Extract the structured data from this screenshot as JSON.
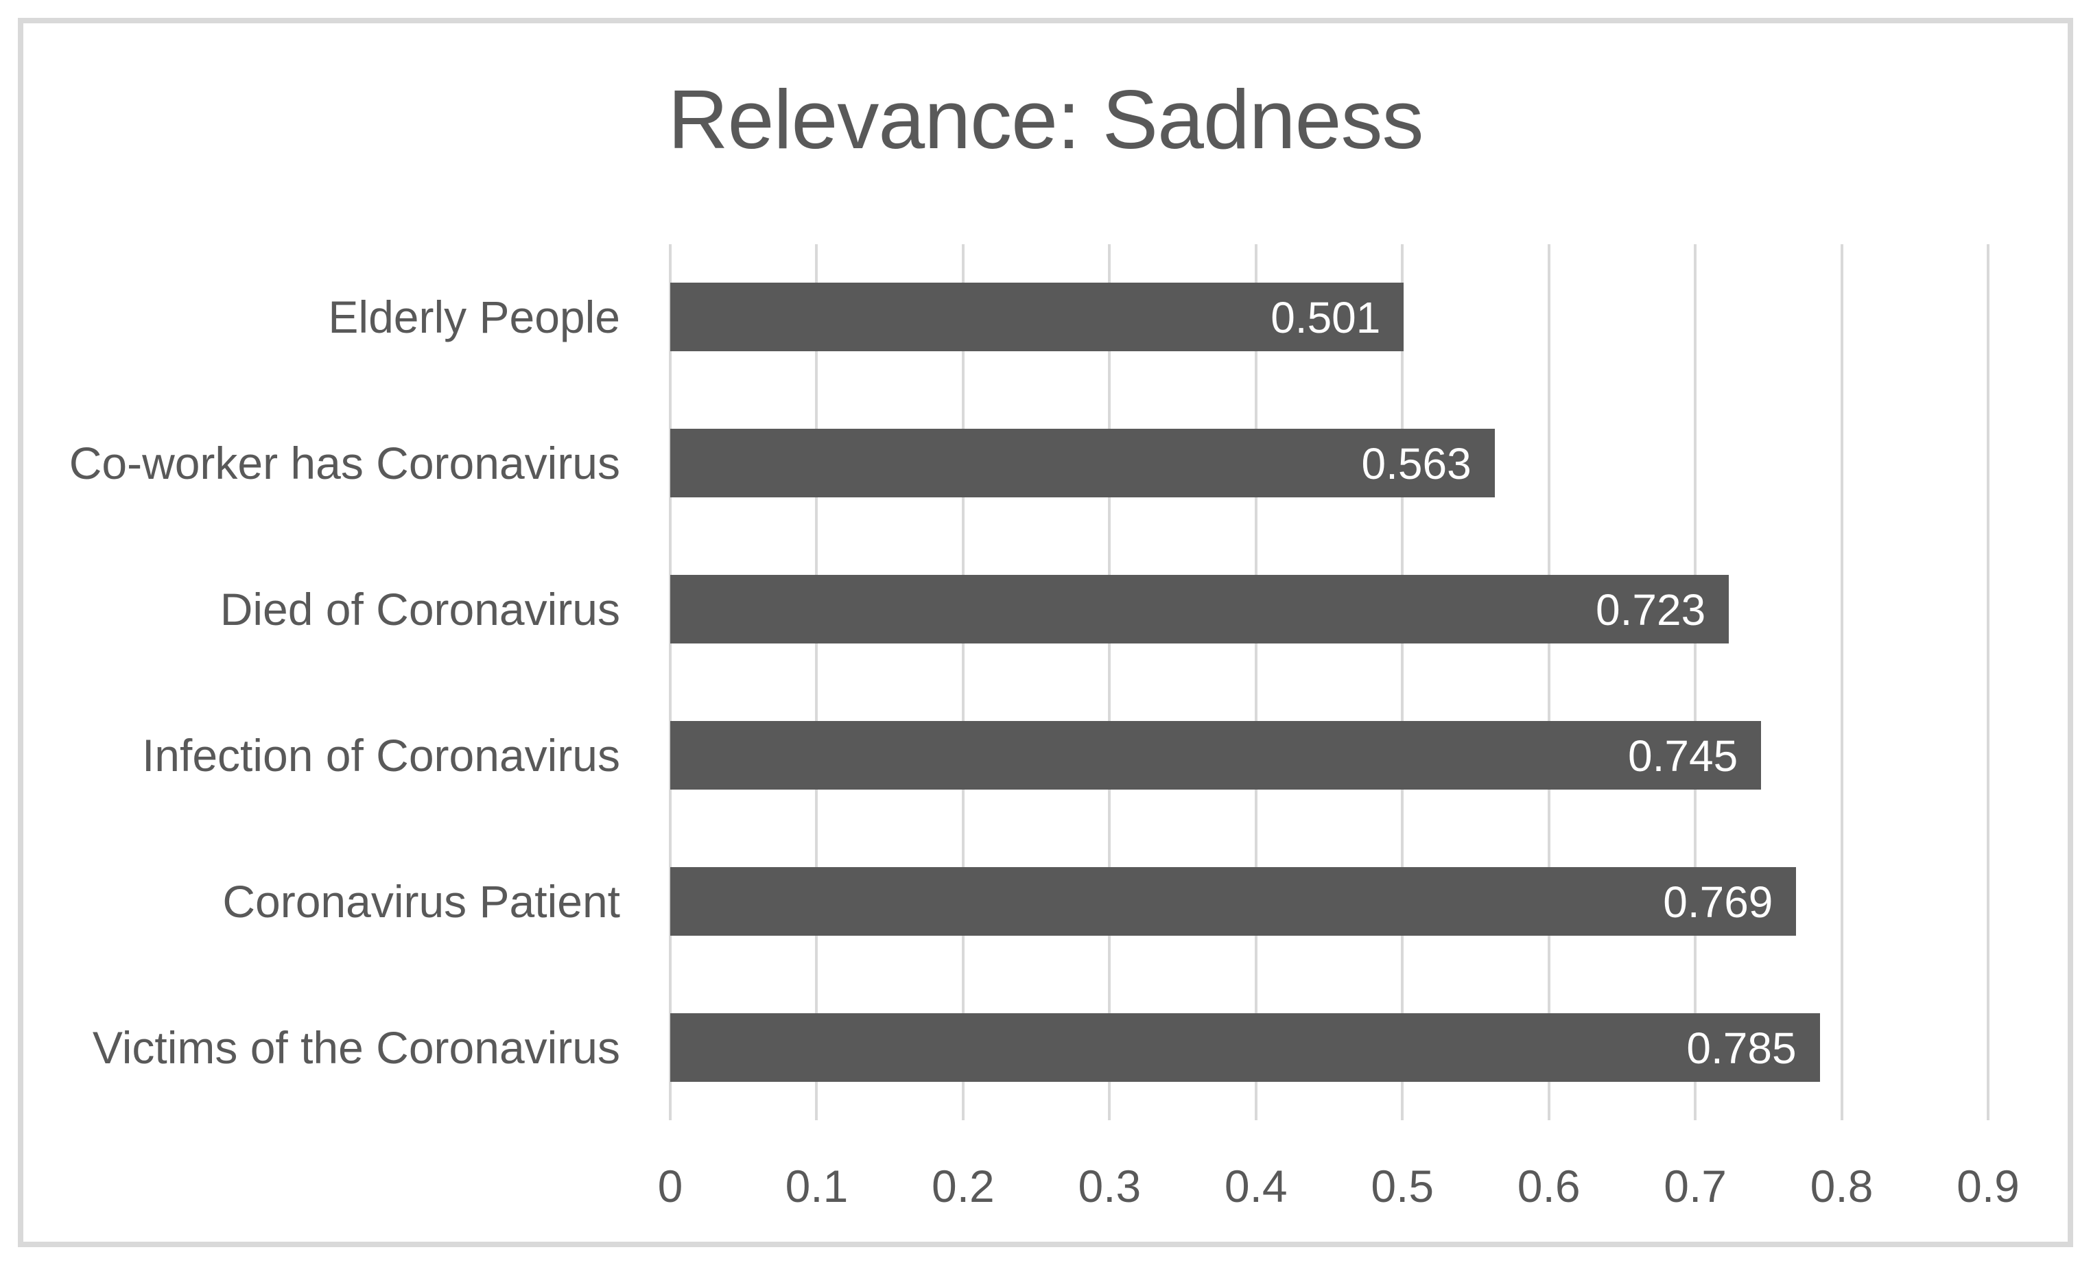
{
  "figure": {
    "background": "#ffffff",
    "border_color": "#d9d9d9"
  },
  "chart_data": {
    "type": "bar",
    "orientation": "horizontal",
    "title": "Relevance: Sadness",
    "categories": [
      "Elderly People",
      "Co-worker has Coronavirus",
      "Died of Coronavirus",
      "Infection of Coronavirus",
      "Coronavirus Patient",
      "Victims of the Coronavirus"
    ],
    "values": [
      0.501,
      0.563,
      0.723,
      0.745,
      0.769,
      0.785
    ],
    "value_labels": [
      "0.501",
      "0.563",
      "0.723",
      "0.745",
      "0.769",
      "0.785"
    ],
    "x_ticks": [
      "0",
      "0.1",
      "0.2",
      "0.3",
      "0.4",
      "0.5",
      "0.6",
      "0.7",
      "0.8",
      "0.9"
    ],
    "xlim": [
      0,
      0.9
    ],
    "xlabel": "",
    "ylabel": "",
    "grid": true,
    "legend": "none",
    "colors": {
      "bar": "#595959",
      "value_text": "#ffffff",
      "title_text": "#595959",
      "axis_text": "#595959",
      "gridline": "#d9d9d9"
    }
  }
}
